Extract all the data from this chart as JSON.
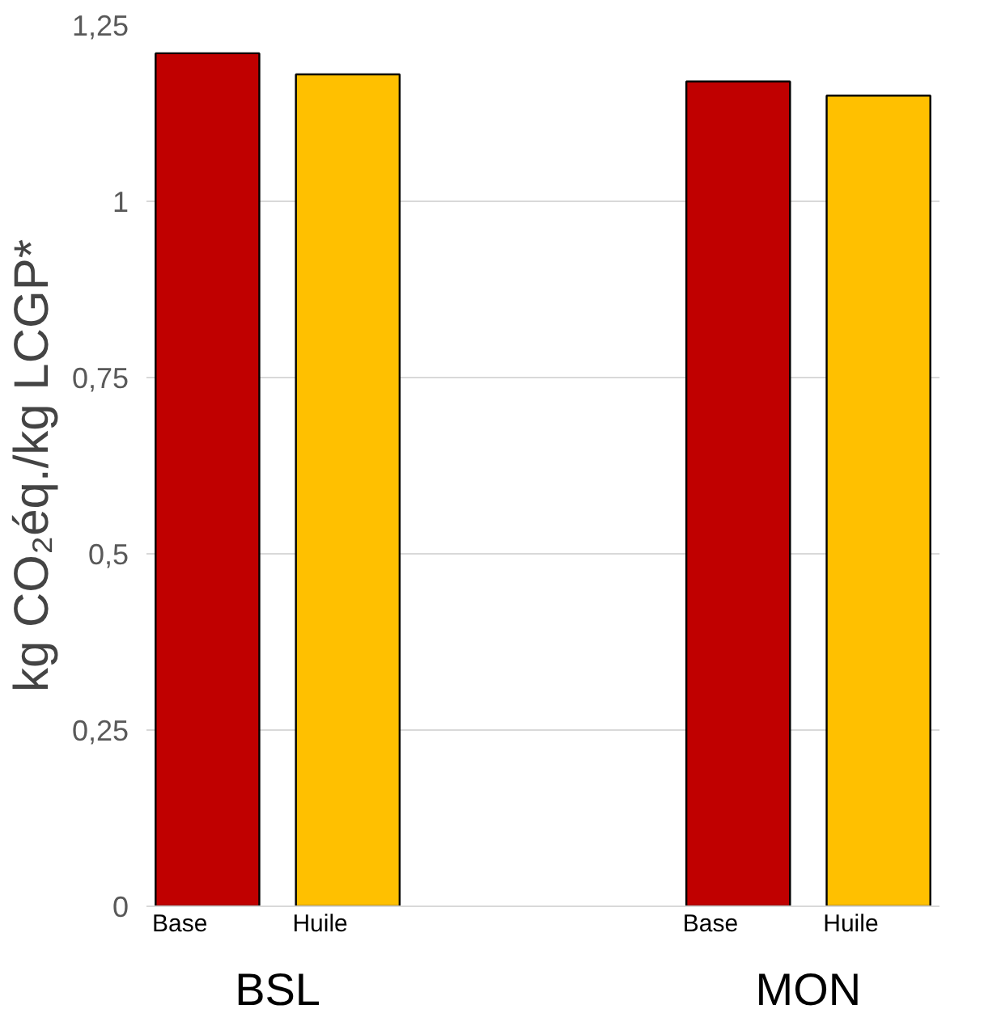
{
  "chart_data": {
    "type": "bar",
    "ylabel": "kg CO₂éq./kg LCGP*",
    "categories": [
      "BSL",
      "MON"
    ],
    "series": [
      {
        "name": "Base",
        "color": "#c00000",
        "values": [
          1.21,
          1.17
        ]
      },
      {
        "name": "Huile",
        "color": "#ffc000",
        "values": [
          1.18,
          1.15
        ]
      }
    ],
    "ylim": [
      0,
      1.25
    ],
    "yticks": [
      0,
      {
        "value": 0.25,
        "label": "0,25"
      },
      {
        "value": 0.5,
        "label": "0,5"
      },
      {
        "value": 0.75,
        "label": "0,75"
      },
      1,
      {
        "value": 1.25,
        "label": "1,25"
      }
    ],
    "grid": "y"
  }
}
